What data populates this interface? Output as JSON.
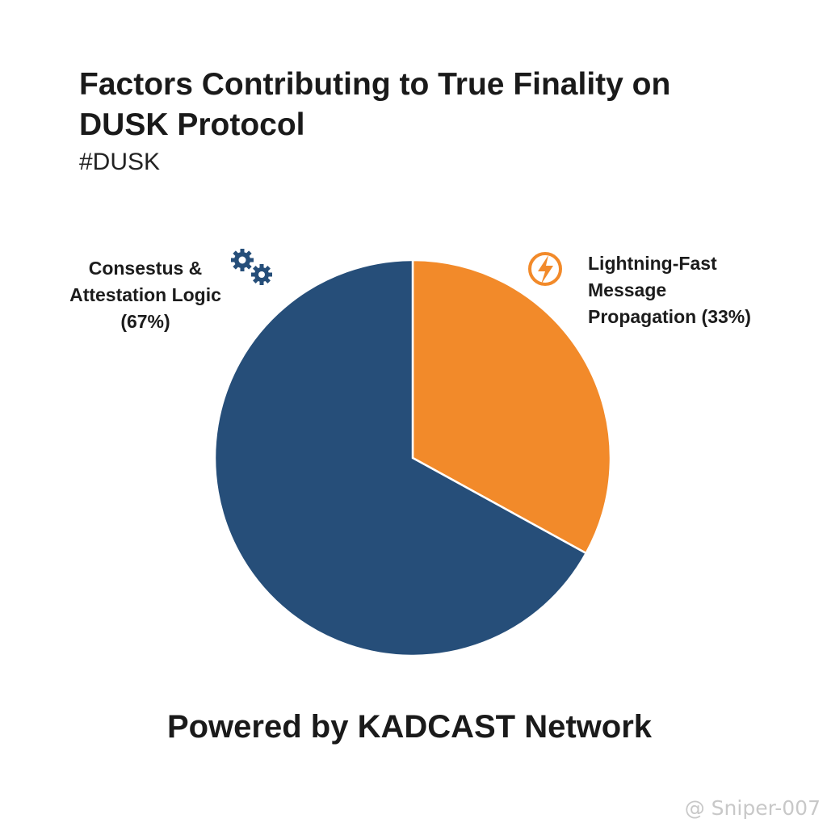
{
  "chart_data": {
    "type": "pie",
    "title": "Factors Contributing to True Finality on DUSK Protocol",
    "subtitle": "#DUSK",
    "slices": [
      {
        "label_lines": [
          "Lightning-Fast",
          "Message",
          "Propagation (33%)"
        ],
        "value": 33,
        "color": "#f28a2a",
        "icon": "lightning-bolt-icon"
      },
      {
        "label_lines": [
          "Consestus &",
          "Attestation Logic",
          "(67%)"
        ],
        "value": 67,
        "color": "#264e79",
        "icon": "gears-icon"
      }
    ],
    "start_angle": "12 o'clock, clockwise",
    "footer": "Powered by KADCAST Network"
  },
  "watermark": "@ Sniper-007"
}
